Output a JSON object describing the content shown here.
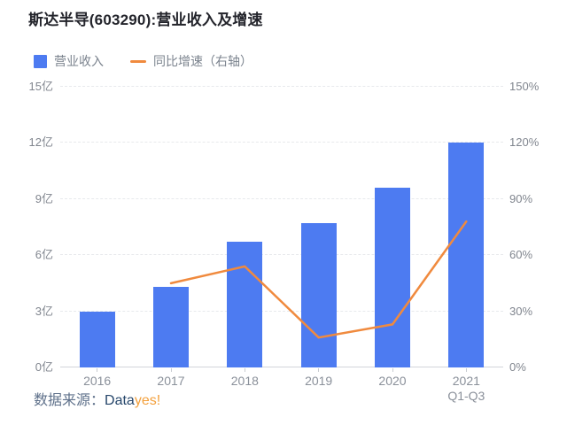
{
  "title": "斯达半导(603290):营业收入及增速",
  "legend": {
    "bar_label": "营业收入",
    "line_label": "同比增速（右轴）"
  },
  "footer": {
    "source_label": "数据来源：",
    "brand_dark": "Data",
    "brand_orange": "yes!"
  },
  "colors": {
    "bar": "#4d7bf1",
    "line": "#f08a3e",
    "grid": "#e7e9ec",
    "axis_line": "#d2d5da",
    "tick": "#c9ccd1",
    "axis_text": "#81868f",
    "x_text": "#8a909a"
  },
  "chart_data": {
    "type": "bar",
    "title": "斯达半导(603290):营业收入及增速",
    "categories": [
      [
        "2016"
      ],
      [
        "2017"
      ],
      [
        "2018"
      ],
      [
        "2019"
      ],
      [
        "2020"
      ],
      [
        "2021",
        "Q1-Q3"
      ]
    ],
    "series": [
      {
        "name": "营业收入",
        "type": "bar",
        "axis": "left",
        "unit": "亿",
        "values": [
          3.0,
          4.3,
          6.7,
          7.7,
          9.6,
          12.0
        ]
      },
      {
        "name": "同比增速（右轴）",
        "type": "line",
        "axis": "right",
        "unit": "%",
        "values": [
          null,
          45,
          54,
          16,
          23,
          78
        ]
      }
    ],
    "left_axis": {
      "min": 0,
      "max": 15,
      "step": 3,
      "ticks": [
        "0亿",
        "3亿",
        "6亿",
        "9亿",
        "12亿",
        "15亿"
      ]
    },
    "right_axis": {
      "min": 0,
      "max": 150,
      "step": 30,
      "ticks": [
        "0%",
        "30%",
        "60%",
        "90%",
        "120%",
        "150%"
      ]
    },
    "grid": "horizontal-dashed",
    "legend_position": "top-left"
  }
}
